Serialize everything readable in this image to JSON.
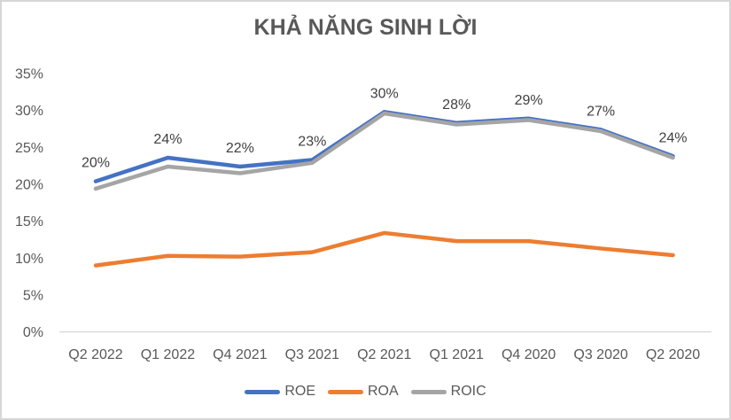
{
  "chart_data": {
    "type": "line",
    "title": "KHẢ NĂNG SINH LỜI",
    "categories": [
      "Q2 2022",
      "Q1 2022",
      "Q4 2021",
      "Q3 2021",
      "Q2 2021",
      "Q1 2021",
      "Q4 2020",
      "Q3 2020",
      "Q2 2020"
    ],
    "series": [
      {
        "name": "ROE",
        "color": "#4472C4",
        "values": [
          20.4,
          23.6,
          22.4,
          23.3,
          29.8,
          28.3,
          28.9,
          27.4,
          23.8
        ]
      },
      {
        "name": "ROA",
        "color": "#ED7D31",
        "values": [
          9.0,
          10.3,
          10.2,
          10.8,
          13.4,
          12.3,
          12.3,
          11.3,
          10.4
        ]
      },
      {
        "name": "ROIC",
        "color": "#A5A5A5",
        "values": [
          19.4,
          22.4,
          21.5,
          22.9,
          29.6,
          28.1,
          28.7,
          27.2,
          23.6
        ]
      }
    ],
    "data_labels": {
      "series": "ROE",
      "labels": [
        "20%",
        "24%",
        "22%",
        "23%",
        "30%",
        "28%",
        "29%",
        "27%",
        "24%"
      ]
    },
    "y_axis": {
      "min": 0,
      "max": 35,
      "step": 5,
      "tick_labels": [
        "0%",
        "5%",
        "10%",
        "15%",
        "20%",
        "25%",
        "30%",
        "35%"
      ]
    },
    "x_axis_line_color": "#D9D9D9",
    "grid": false,
    "legend_position": "bottom",
    "legend_order": [
      "ROE",
      "ROA",
      "ROIC"
    ]
  }
}
